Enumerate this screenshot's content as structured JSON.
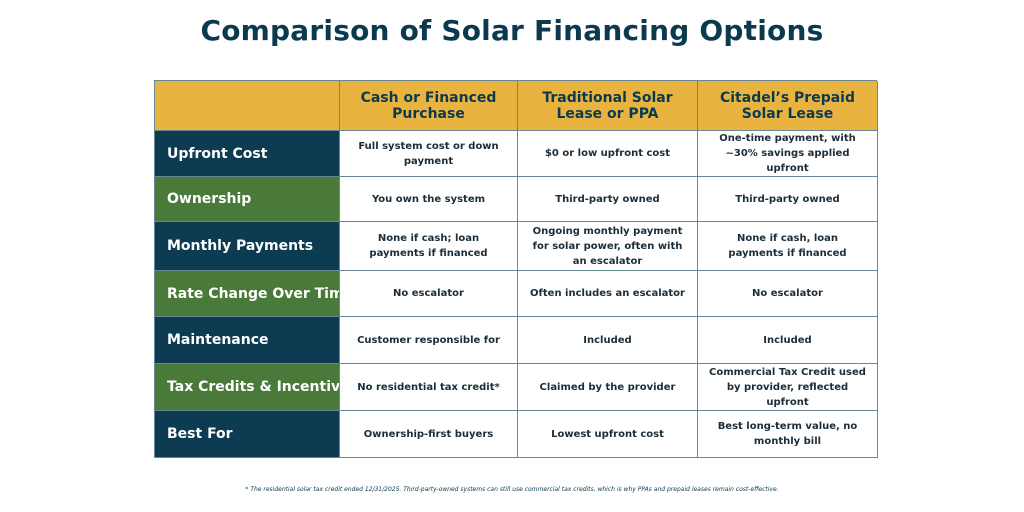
{
  "title": "Comparison of Solar Financing Options",
  "table": {
    "corner": "",
    "columns": [
      "Cash or Financed Purchase",
      "Traditional Solar Lease or PPA",
      "Citadel’s Prepaid Solar Lease"
    ],
    "rows": [
      {
        "label": "Upfront Cost",
        "label_color": "navy",
        "cells": [
          "Full system cost or down payment",
          "$0 or low upfront cost",
          "One-time payment, with ~30% savings applied upfront"
        ]
      },
      {
        "label": "Ownership",
        "label_color": "green",
        "cells": [
          "You own the system",
          "Third-party owned",
          "Third-party owned"
        ]
      },
      {
        "label": "Monthly Payments",
        "label_color": "navy",
        "cells": [
          "None if cash; loan payments if financed",
          "Ongoing monthly payment for solar power, often with an escalator",
          "None if cash, loan payments if financed"
        ]
      },
      {
        "label": "Rate Change Over Time",
        "label_color": "green",
        "cells": [
          "No escalator",
          "Often includes an escalator",
          "No escalator"
        ]
      },
      {
        "label": "Maintenance",
        "label_color": "navy",
        "cells": [
          "Customer responsible for",
          "Included",
          "Included"
        ]
      },
      {
        "label": "Tax Credits  & Incentives",
        "label_color": "green",
        "cells": [
          "No residential tax credit*",
          "Claimed by the provider",
          "Commercial Tax Credit used by provider, reflected upfront"
        ]
      },
      {
        "label": "Best For",
        "label_color": "navy",
        "cells": [
          "Ownership-first buyers",
          "Lowest upfront cost",
          "Best long-term value, no monthly bill"
        ]
      }
    ]
  },
  "footnote": "* The residential solar tax credit ended 12/31/2025. Third-party-owned systems can still use commercial tax credits, which is why PPAs and prepaid leases remain cost-effective.",
  "colors": {
    "header_gold": "#e8b43f",
    "navy": "#0d3b52",
    "green": "#4a7a3a",
    "title_text": "#0b3a4f"
  }
}
